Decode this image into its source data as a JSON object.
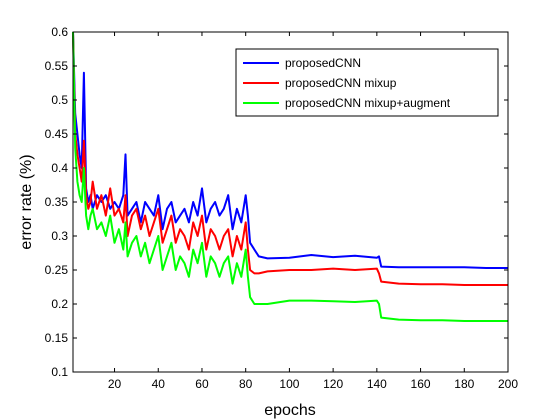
{
  "chart_data": {
    "type": "line",
    "title": "",
    "xlabel": "epochs",
    "ylabel": "error rate (%)",
    "xlim": [
      1,
      200
    ],
    "ylim": [
      0.1,
      0.6
    ],
    "xticks": [
      20,
      40,
      60,
      80,
      100,
      120,
      140,
      160,
      180,
      200
    ],
    "yticks": [
      0.1,
      0.15,
      0.2,
      0.25,
      0.3,
      0.35,
      0.4,
      0.45,
      0.5,
      0.55,
      0.6
    ],
    "xtick_labels": [
      "20",
      "40",
      "60",
      "80",
      "100",
      "120",
      "140",
      "160",
      "180",
      "200"
    ],
    "ytick_labels": [
      "0.1",
      "0.15",
      "0.2",
      "0.25",
      "0.3",
      "0.35",
      "0.4",
      "0.45",
      "0.5",
      "0.55",
      "0.6"
    ],
    "grid": false,
    "legend_position": "top-right",
    "series": [
      {
        "name": "proposedCNN",
        "color": "#0000ff",
        "x": [
          1,
          2,
          3,
          4,
          5,
          6,
          7,
          8,
          9,
          10,
          12,
          14,
          16,
          18,
          20,
          22,
          24,
          25,
          26,
          28,
          30,
          32,
          34,
          36,
          38,
          40,
          42,
          44,
          46,
          48,
          50,
          52,
          54,
          56,
          58,
          60,
          62,
          64,
          66,
          68,
          70,
          72,
          74,
          76,
          78,
          80,
          81,
          82,
          84,
          86,
          90,
          100,
          110,
          120,
          130,
          140,
          141,
          142,
          150,
          160,
          170,
          180,
          190,
          200
        ],
        "y": [
          0.6,
          0.48,
          0.45,
          0.42,
          0.4,
          0.54,
          0.37,
          0.35,
          0.36,
          0.34,
          0.36,
          0.35,
          0.36,
          0.34,
          0.35,
          0.34,
          0.36,
          0.42,
          0.33,
          0.34,
          0.35,
          0.32,
          0.35,
          0.34,
          0.33,
          0.36,
          0.31,
          0.34,
          0.35,
          0.32,
          0.33,
          0.34,
          0.32,
          0.35,
          0.33,
          0.37,
          0.32,
          0.34,
          0.35,
          0.33,
          0.34,
          0.36,
          0.31,
          0.34,
          0.32,
          0.36,
          0.33,
          0.29,
          0.28,
          0.27,
          0.267,
          0.268,
          0.272,
          0.269,
          0.271,
          0.268,
          0.27,
          0.255,
          0.254,
          0.254,
          0.254,
          0.254,
          0.253,
          0.253
        ]
      },
      {
        "name": "proposedCNN mixup",
        "color": "#ff0000",
        "x": [
          1,
          2,
          3,
          4,
          5,
          6,
          7,
          8,
          9,
          10,
          12,
          14,
          16,
          18,
          20,
          22,
          24,
          25,
          26,
          28,
          30,
          32,
          34,
          36,
          38,
          40,
          42,
          44,
          46,
          48,
          50,
          52,
          54,
          56,
          58,
          60,
          62,
          64,
          66,
          68,
          70,
          72,
          74,
          76,
          78,
          80,
          81,
          82,
          84,
          86,
          90,
          100,
          110,
          120,
          130,
          140,
          141,
          142,
          150,
          160,
          170,
          180,
          190,
          200
        ],
        "y": [
          0.6,
          0.45,
          0.42,
          0.4,
          0.38,
          0.44,
          0.36,
          0.34,
          0.35,
          0.38,
          0.34,
          0.36,
          0.33,
          0.37,
          0.33,
          0.34,
          0.32,
          0.36,
          0.3,
          0.33,
          0.34,
          0.31,
          0.33,
          0.3,
          0.32,
          0.34,
          0.29,
          0.31,
          0.33,
          0.29,
          0.31,
          0.3,
          0.28,
          0.32,
          0.3,
          0.33,
          0.28,
          0.31,
          0.3,
          0.28,
          0.3,
          0.31,
          0.27,
          0.3,
          0.28,
          0.32,
          0.28,
          0.25,
          0.245,
          0.245,
          0.248,
          0.25,
          0.25,
          0.252,
          0.25,
          0.252,
          0.245,
          0.233,
          0.23,
          0.229,
          0.229,
          0.228,
          0.228,
          0.228
        ]
      },
      {
        "name": "proposedCNN mixup+augment",
        "color": "#00ff00",
        "x": [
          1,
          2,
          3,
          4,
          5,
          6,
          7,
          8,
          9,
          10,
          12,
          14,
          16,
          18,
          20,
          22,
          24,
          25,
          26,
          28,
          30,
          32,
          34,
          36,
          38,
          40,
          42,
          44,
          46,
          48,
          50,
          52,
          54,
          56,
          58,
          60,
          62,
          64,
          66,
          68,
          70,
          72,
          74,
          76,
          78,
          80,
          81,
          82,
          84,
          86,
          90,
          100,
          110,
          120,
          130,
          140,
          141,
          142,
          150,
          160,
          170,
          180,
          190,
          200
        ],
        "y": [
          0.6,
          0.43,
          0.38,
          0.36,
          0.35,
          0.4,
          0.33,
          0.31,
          0.33,
          0.34,
          0.31,
          0.32,
          0.3,
          0.33,
          0.29,
          0.31,
          0.28,
          0.32,
          0.27,
          0.29,
          0.3,
          0.27,
          0.29,
          0.26,
          0.28,
          0.3,
          0.25,
          0.27,
          0.29,
          0.25,
          0.27,
          0.26,
          0.24,
          0.28,
          0.26,
          0.29,
          0.24,
          0.27,
          0.26,
          0.24,
          0.26,
          0.27,
          0.23,
          0.26,
          0.24,
          0.28,
          0.24,
          0.21,
          0.2,
          0.2,
          0.2,
          0.205,
          0.205,
          0.204,
          0.203,
          0.205,
          0.2,
          0.18,
          0.177,
          0.176,
          0.176,
          0.175,
          0.175,
          0.175
        ]
      }
    ]
  }
}
